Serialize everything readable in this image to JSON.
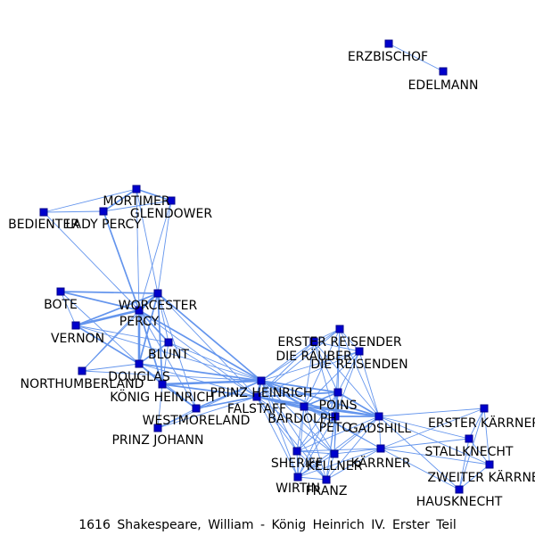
{
  "caption": "1616 Shakespeare, William - König Heinrich IV. Erster Teil",
  "colors": {
    "edge": "#6495ed",
    "node_fill": "#0000cd",
    "node_stroke": "#00008b",
    "label": "#000000"
  },
  "nodes": [
    {
      "id": "ERZBISCHOF",
      "label": "ERZBISCHOF"
    },
    {
      "id": "EDELMANN",
      "label": "EDELMANN"
    },
    {
      "id": "MORTIMER",
      "label": "MORTIMER"
    },
    {
      "id": "GLENDOWER",
      "label": "GLENDOWER"
    },
    {
      "id": "BEDIENTER",
      "label": "BEDIENTER"
    },
    {
      "id": "LADY PERCY",
      "label": "LADY PERCY"
    },
    {
      "id": "BOTE",
      "label": "BOTE"
    },
    {
      "id": "WORCESTER",
      "label": "WORCESTER"
    },
    {
      "id": "PERCY",
      "label": "PERCY"
    },
    {
      "id": "VERNON",
      "label": "VERNON"
    },
    {
      "id": "BLUNT",
      "label": "BLUNT"
    },
    {
      "id": "DOUGLAS",
      "label": "DOUGLAS"
    },
    {
      "id": "NORTHUMBERLAND",
      "label": "NORTHUMBERLAND"
    },
    {
      "id": "KÖNIG HEINRICH",
      "label": "KÖNIG HEINRICH"
    },
    {
      "id": "WESTMORELAND",
      "label": "WESTMORELAND"
    },
    {
      "id": "PRINZ JOHANN",
      "label": "PRINZ JOHANN"
    },
    {
      "id": "PRINZ HEINRICH",
      "label": "PRINZ HEINRICH"
    },
    {
      "id": "FALSTAFF",
      "label": "FALSTAFF"
    },
    {
      "id": "ERSTER REISENDER",
      "label": "ERSTER REISENDER"
    },
    {
      "id": "DIE RÄUBER",
      "label": "DIE RÄUBER"
    },
    {
      "id": "DIE REISENDEN",
      "label": "DIE REISENDEN"
    },
    {
      "id": "POINS",
      "label": "POINS"
    },
    {
      "id": "BARDOLPH",
      "label": "BARDOLPH"
    },
    {
      "id": "PETO",
      "label": "PETO"
    },
    {
      "id": "GADSHILL",
      "label": "GADSHILL"
    },
    {
      "id": "ERSTER KÄRRNER",
      "label": "ERSTER KÄRRNER"
    },
    {
      "id": "STALLKNECHT",
      "label": "STALLKNECHT"
    },
    {
      "id": "ZWEITER KÄRRNER",
      "label": "ZWEITER KÄRRNER"
    },
    {
      "id": "HAUSKNECHT",
      "label": "HAUSKNECHT"
    },
    {
      "id": "SHERIFF",
      "label": "SHERIFF"
    },
    {
      "id": "KELLNER",
      "label": "KELLNER"
    },
    {
      "id": "KÄRRNER",
      "label": "KÄRRNER"
    },
    {
      "id": "WIRTIN",
      "label": "WIRTIN"
    },
    {
      "id": "FRANZ",
      "label": "FRANZ"
    }
  ],
  "edges": [
    [
      "ERZBISCHOF",
      "EDELMANN",
      1
    ],
    [
      "MORTIMER",
      "GLENDOWER",
      2
    ],
    [
      "MORTIMER",
      "LADY PERCY",
      2
    ],
    [
      "MORTIMER",
      "PERCY",
      1
    ],
    [
      "MORTIMER",
      "WORCESTER",
      1
    ],
    [
      "MORTIMER",
      "BEDIENTER",
      1
    ],
    [
      "GLENDOWER",
      "LADY PERCY",
      1
    ],
    [
      "GLENDOWER",
      "PERCY",
      1
    ],
    [
      "GLENDOWER",
      "WORCESTER",
      1
    ],
    [
      "BEDIENTER",
      "LADY PERCY",
      1
    ],
    [
      "BEDIENTER",
      "PERCY",
      1
    ],
    [
      "LADY PERCY",
      "PERCY",
      2
    ],
    [
      "BOTE",
      "WORCESTER",
      2
    ],
    [
      "BOTE",
      "PERCY",
      2
    ],
    [
      "BOTE",
      "VERNON",
      1
    ],
    [
      "BOTE",
      "DOUGLAS",
      1
    ],
    [
      "WORCESTER",
      "PERCY",
      3
    ],
    [
      "WORCESTER",
      "VERNON",
      2
    ],
    [
      "WORCESTER",
      "DOUGLAS",
      2
    ],
    [
      "WORCESTER",
      "BLUNT",
      1
    ],
    [
      "WORCESTER",
      "NORTHUMBERLAND",
      1
    ],
    [
      "WORCESTER",
      "KÖNIG HEINRICH",
      2
    ],
    [
      "WORCESTER",
      "PRINZ HEINRICH",
      2
    ],
    [
      "WORCESTER",
      "WESTMORELAND",
      1
    ],
    [
      "WORCESTER",
      "FALSTAFF",
      1
    ],
    [
      "PERCY",
      "VERNON",
      3
    ],
    [
      "PERCY",
      "DOUGLAS",
      3
    ],
    [
      "PERCY",
      "BLUNT",
      2
    ],
    [
      "PERCY",
      "NORTHUMBERLAND",
      1
    ],
    [
      "PERCY",
      "KÖNIG HEINRICH",
      2
    ],
    [
      "PERCY",
      "PRINZ HEINRICH",
      2
    ],
    [
      "PERCY",
      "WESTMORELAND",
      1
    ],
    [
      "PERCY",
      "FALSTAFF",
      1
    ],
    [
      "VERNON",
      "DOUGLAS",
      2
    ],
    [
      "VERNON",
      "BLUNT",
      1
    ],
    [
      "VERNON",
      "PRINZ HEINRICH",
      1
    ],
    [
      "BLUNT",
      "DOUGLAS",
      2
    ],
    [
      "BLUNT",
      "KÖNIG HEINRICH",
      1
    ],
    [
      "BLUNT",
      "PRINZ HEINRICH",
      1
    ],
    [
      "BLUNT",
      "FALSTAFF",
      1
    ],
    [
      "DOUGLAS",
      "KÖNIG HEINRICH",
      2
    ],
    [
      "DOUGLAS",
      "PRINZ HEINRICH",
      2
    ],
    [
      "DOUGLAS",
      "FALSTAFF",
      1
    ],
    [
      "DOUGLAS",
      "NORTHUMBERLAND",
      1
    ],
    [
      "DOUGLAS",
      "WESTMORELAND",
      1
    ],
    [
      "NORTHUMBERLAND",
      "PRINZ HEINRICH",
      1
    ],
    [
      "KÖNIG HEINRICH",
      "PRINZ HEINRICH",
      3
    ],
    [
      "KÖNIG HEINRICH",
      "WESTMORELAND",
      2
    ],
    [
      "KÖNIG HEINRICH",
      "PRINZ JOHANN",
      1
    ],
    [
      "KÖNIG HEINRICH",
      "FALSTAFF",
      2
    ],
    [
      "WESTMORELAND",
      "PRINZ HEINRICH",
      2
    ],
    [
      "WESTMORELAND",
      "FALSTAFF",
      2
    ],
    [
      "WESTMORELAND",
      "PRINZ JOHANN",
      1
    ],
    [
      "PRINZ JOHANN",
      "PRINZ HEINRICH",
      1
    ],
    [
      "PRINZ JOHANN",
      "FALSTAFF",
      1
    ],
    [
      "PRINZ HEINRICH",
      "FALSTAFF",
      3
    ],
    [
      "PRINZ HEINRICH",
      "POINS",
      2
    ],
    [
      "PRINZ HEINRICH",
      "BARDOLPH",
      2
    ],
    [
      "PRINZ HEINRICH",
      "PETO",
      2
    ],
    [
      "PRINZ HEINRICH",
      "GADSHILL",
      2
    ],
    [
      "PRINZ HEINRICH",
      "SHERIFF",
      1
    ],
    [
      "PRINZ HEINRICH",
      "KELLNER",
      1
    ],
    [
      "PRINZ HEINRICH",
      "WIRTIN",
      1
    ],
    [
      "PRINZ HEINRICH",
      "FRANZ",
      1
    ],
    [
      "PRINZ HEINRICH",
      "DIE RÄUBER",
      1
    ],
    [
      "PRINZ HEINRICH",
      "DIE REISENDEN",
      1
    ],
    [
      "PRINZ HEINRICH",
      "ERSTER REISENDER",
      1
    ],
    [
      "PRINZ HEINRICH",
      "KÄRRNER",
      1
    ],
    [
      "FALSTAFF",
      "POINS",
      2
    ],
    [
      "FALSTAFF",
      "BARDOLPH",
      2
    ],
    [
      "FALSTAFF",
      "PETO",
      2
    ],
    [
      "FALSTAFF",
      "GADSHILL",
      2
    ],
    [
      "FALSTAFF",
      "SHERIFF",
      1
    ],
    [
      "FALSTAFF",
      "KELLNER",
      1
    ],
    [
      "FALSTAFF",
      "WIRTIN",
      1
    ],
    [
      "FALSTAFF",
      "FRANZ",
      1
    ],
    [
      "FALSTAFF",
      "DIE RÄUBER",
      1
    ],
    [
      "FALSTAFF",
      "DIE REISENDEN",
      1
    ],
    [
      "FALSTAFF",
      "ERSTER REISENDER",
      1
    ],
    [
      "ERSTER REISENDER",
      "DIE RÄUBER",
      1
    ],
    [
      "ERSTER REISENDER",
      "DIE REISENDEN",
      1
    ],
    [
      "ERSTER REISENDER",
      "POINS",
      1
    ],
    [
      "ERSTER REISENDER",
      "GADSHILL",
      1
    ],
    [
      "ERSTER REISENDER",
      "BARDOLPH",
      1
    ],
    [
      "ERSTER REISENDER",
      "PETO",
      1
    ],
    [
      "DIE RÄUBER",
      "DIE REISENDEN",
      1
    ],
    [
      "DIE RÄUBER",
      "POINS",
      1
    ],
    [
      "DIE RÄUBER",
      "GADSHILL",
      1
    ],
    [
      "DIE RÄUBER",
      "BARDOLPH",
      1
    ],
    [
      "DIE RÄUBER",
      "PETO",
      1
    ],
    [
      "DIE REISENDEN",
      "POINS",
      1
    ],
    [
      "DIE REISENDEN",
      "GADSHILL",
      1
    ],
    [
      "DIE REISENDEN",
      "BARDOLPH",
      1
    ],
    [
      "DIE REISENDEN",
      "PETO",
      1
    ],
    [
      "POINS",
      "BARDOLPH",
      2
    ],
    [
      "POINS",
      "PETO",
      2
    ],
    [
      "POINS",
      "GADSHILL",
      2
    ],
    [
      "POINS",
      "SHERIFF",
      1
    ],
    [
      "POINS",
      "KELLNER",
      1
    ],
    [
      "POINS",
      "WIRTIN",
      1
    ],
    [
      "POINS",
      "FRANZ",
      1
    ],
    [
      "BARDOLPH",
      "PETO",
      2
    ],
    [
      "BARDOLPH",
      "GADSHILL",
      2
    ],
    [
      "BARDOLPH",
      "SHERIFF",
      1
    ],
    [
      "BARDOLPH",
      "KELLNER",
      1
    ],
    [
      "BARDOLPH",
      "WIRTIN",
      1
    ],
    [
      "BARDOLPH",
      "FRANZ",
      1
    ],
    [
      "BARDOLPH",
      "KÄRRNER",
      1
    ],
    [
      "PETO",
      "GADSHILL",
      2
    ],
    [
      "PETO",
      "SHERIFF",
      1
    ],
    [
      "PETO",
      "KELLNER",
      1
    ],
    [
      "PETO",
      "WIRTIN",
      1
    ],
    [
      "PETO",
      "FRANZ",
      1
    ],
    [
      "GADSHILL",
      "ERSTER KÄRRNER",
      1
    ],
    [
      "GADSHILL",
      "STALLKNECHT",
      1
    ],
    [
      "GADSHILL",
      "ZWEITER KÄRRNER",
      1
    ],
    [
      "GADSHILL",
      "HAUSKNECHT",
      1
    ],
    [
      "GADSHILL",
      "KÄRRNER",
      1
    ],
    [
      "GADSHILL",
      "SHERIFF",
      1
    ],
    [
      "GADSHILL",
      "KELLNER",
      1
    ],
    [
      "GADSHILL",
      "WIRTIN",
      1
    ],
    [
      "GADSHILL",
      "FRANZ",
      1
    ],
    [
      "ERSTER KÄRRNER",
      "STALLKNECHT",
      1
    ],
    [
      "ERSTER KÄRRNER",
      "ZWEITER KÄRRNER",
      1
    ],
    [
      "ERSTER KÄRRNER",
      "KÄRRNER",
      1
    ],
    [
      "ERSTER KÄRRNER",
      "HAUSKNECHT",
      1
    ],
    [
      "STALLKNECHT",
      "ZWEITER KÄRRNER",
      1
    ],
    [
      "STALLKNECHT",
      "KÄRRNER",
      1
    ],
    [
      "STALLKNECHT",
      "HAUSKNECHT",
      1
    ],
    [
      "ZWEITER KÄRRNER",
      "KÄRRNER",
      1
    ],
    [
      "ZWEITER KÄRRNER",
      "HAUSKNECHT",
      1
    ],
    [
      "KÄRRNER",
      "HAUSKNECHT",
      1
    ],
    [
      "SHERIFF",
      "KELLNER",
      1
    ],
    [
      "SHERIFF",
      "WIRTIN",
      1
    ],
    [
      "SHERIFF",
      "FRANZ",
      1
    ],
    [
      "SHERIFF",
      "KÄRRNER",
      1
    ],
    [
      "KELLNER",
      "WIRTIN",
      1
    ],
    [
      "KELLNER",
      "FRANZ",
      1
    ],
    [
      "KELLNER",
      "KÄRRNER",
      1
    ],
    [
      "WIRTIN",
      "FRANZ",
      1
    ],
    [
      "WIRTIN",
      "KÄRRNER",
      1
    ],
    [
      "FRANZ",
      "KÄRRNER",
      1
    ]
  ]
}
